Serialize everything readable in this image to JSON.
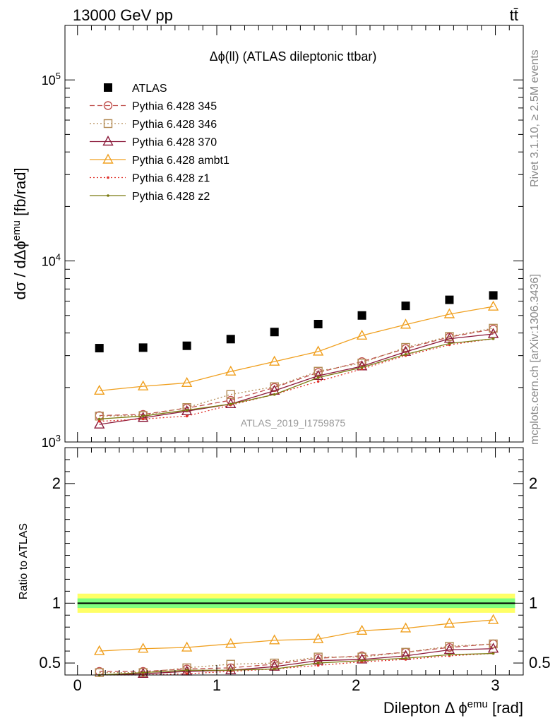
{
  "header": {
    "beam": "13000 GeV pp",
    "process": "tt̄"
  },
  "side_labels": {
    "rivet": "Rivet 3.1.10, ≥ 2.5M events",
    "url": "mcplots.cern.ch [arXiv:1306.3436]"
  },
  "chart_data": [
    {
      "type": "scatter",
      "title": "Δϕ(ll) (ATLAS dileptonic ttbar)",
      "watermark": "ATLAS_2019_I1759875",
      "ylabel": "dσ / dΔϕ^emu [fb/rad]",
      "xlabel": "",
      "yscale": "log",
      "ylim": [
        1000,
        200000
      ],
      "xlim": [
        -0.09,
        3.2
      ],
      "ytick_labels": [
        "10^3",
        "10^4",
        "10^5"
      ],
      "legend_position": "top-left",
      "x": [
        0.157,
        0.471,
        0.785,
        1.1,
        1.414,
        1.728,
        2.042,
        2.356,
        2.67,
        2.985
      ],
      "series": [
        {
          "name": "ATLAS",
          "color": "#000000",
          "style": "data",
          "values": [
            3300,
            3320,
            3400,
            3700,
            4050,
            4480,
            5000,
            5650,
            6100,
            6450
          ]
        },
        {
          "name": "Pythia 6.428 345",
          "color": "#c0504d",
          "style": "dashed",
          "marker": "circle",
          "values": [
            1400,
            1420,
            1540,
            1700,
            2000,
            2420,
            2780,
            3280,
            3800,
            4200
          ]
        },
        {
          "name": "Pythia 6.428 346",
          "color": "#b38b55",
          "style": "dotted",
          "marker": "square",
          "values": [
            1390,
            1400,
            1550,
            1830,
            2020,
            2460,
            2730,
            3330,
            3830,
            4250
          ]
        },
        {
          "name": "Pythia 6.428 370",
          "color": "#8b1a3a",
          "style": "solid",
          "marker": "triangle",
          "values": [
            1250,
            1360,
            1480,
            1620,
            1920,
            2320,
            2620,
            3150,
            3720,
            3950
          ]
        },
        {
          "name": "Pythia 6.428 ambt1",
          "color": "#f0a020",
          "style": "solid",
          "marker": "triangle",
          "values": [
            1920,
            2030,
            2120,
            2450,
            2780,
            3160,
            3870,
            4450,
            5080,
            5600
          ]
        },
        {
          "name": "Pythia 6.428 z1",
          "color": "#e0302a",
          "style": "dotted",
          "marker": "dot",
          "values": [
            1300,
            1340,
            1390,
            1600,
            1830,
            2160,
            2530,
            3000,
            3440,
            3720
          ]
        },
        {
          "name": "Pythia 6.428 z2",
          "color": "#7a7a10",
          "style": "solid",
          "marker": "dot",
          "values": [
            1340,
            1390,
            1500,
            1620,
            1830,
            2270,
            2580,
            3050,
            3500,
            3720
          ]
        }
      ]
    },
    {
      "type": "line",
      "title": "",
      "xlabel": "Dilepton Δ ϕ^emu [rad]",
      "ylabel": "Ratio to ATLAS",
      "ylim": [
        0.4,
        2.3
      ],
      "xlim": [
        -0.09,
        3.2
      ],
      "xtick_labels": [
        "0",
        "1",
        "2",
        "3"
      ],
      "ytick_labels": [
        "0.5",
        "1",
        "2"
      ],
      "band": {
        "outer": [
          0.92,
          1.08
        ],
        "inner": [
          0.96,
          1.04
        ],
        "outer_color": "#ffff66",
        "inner_color": "#7fff7f"
      },
      "x": [
        0.157,
        0.471,
        0.785,
        1.1,
        1.414,
        1.728,
        2.042,
        2.356,
        2.67,
        2.985
      ],
      "series": [
        {
          "name": "Pythia 6.428 345",
          "color": "#c0504d",
          "style": "dashed",
          "marker": "circle",
          "values": [
            0.43,
            0.43,
            0.45,
            0.46,
            0.49,
            0.54,
            0.56,
            0.59,
            0.63,
            0.66
          ]
        },
        {
          "name": "Pythia 6.428 346",
          "color": "#b38b55",
          "style": "dotted",
          "marker": "square",
          "values": [
            0.42,
            0.42,
            0.46,
            0.49,
            0.5,
            0.55,
            0.55,
            0.59,
            0.64,
            0.66
          ]
        },
        {
          "name": "Pythia 6.428 370",
          "color": "#8b1a3a",
          "style": "solid",
          "marker": "triangle",
          "values": [
            0.38,
            0.41,
            0.43,
            0.44,
            0.47,
            0.52,
            0.53,
            0.56,
            0.61,
            0.62
          ]
        },
        {
          "name": "Pythia 6.428 ambt1",
          "color": "#f0a020",
          "style": "solid",
          "marker": "triangle",
          "values": [
            0.6,
            0.62,
            0.63,
            0.66,
            0.69,
            0.7,
            0.77,
            0.79,
            0.83,
            0.86
          ]
        },
        {
          "name": "Pythia 6.428 z1",
          "color": "#e0302a",
          "style": "dotted",
          "marker": "dot",
          "values": [
            0.39,
            0.4,
            0.41,
            0.43,
            0.45,
            0.48,
            0.51,
            0.53,
            0.56,
            0.58
          ]
        },
        {
          "name": "Pythia 6.428 z2",
          "color": "#7a7a10",
          "style": "solid",
          "marker": "dot",
          "values": [
            0.4,
            0.42,
            0.44,
            0.44,
            0.45,
            0.5,
            0.52,
            0.54,
            0.57,
            0.58
          ]
        }
      ]
    }
  ]
}
